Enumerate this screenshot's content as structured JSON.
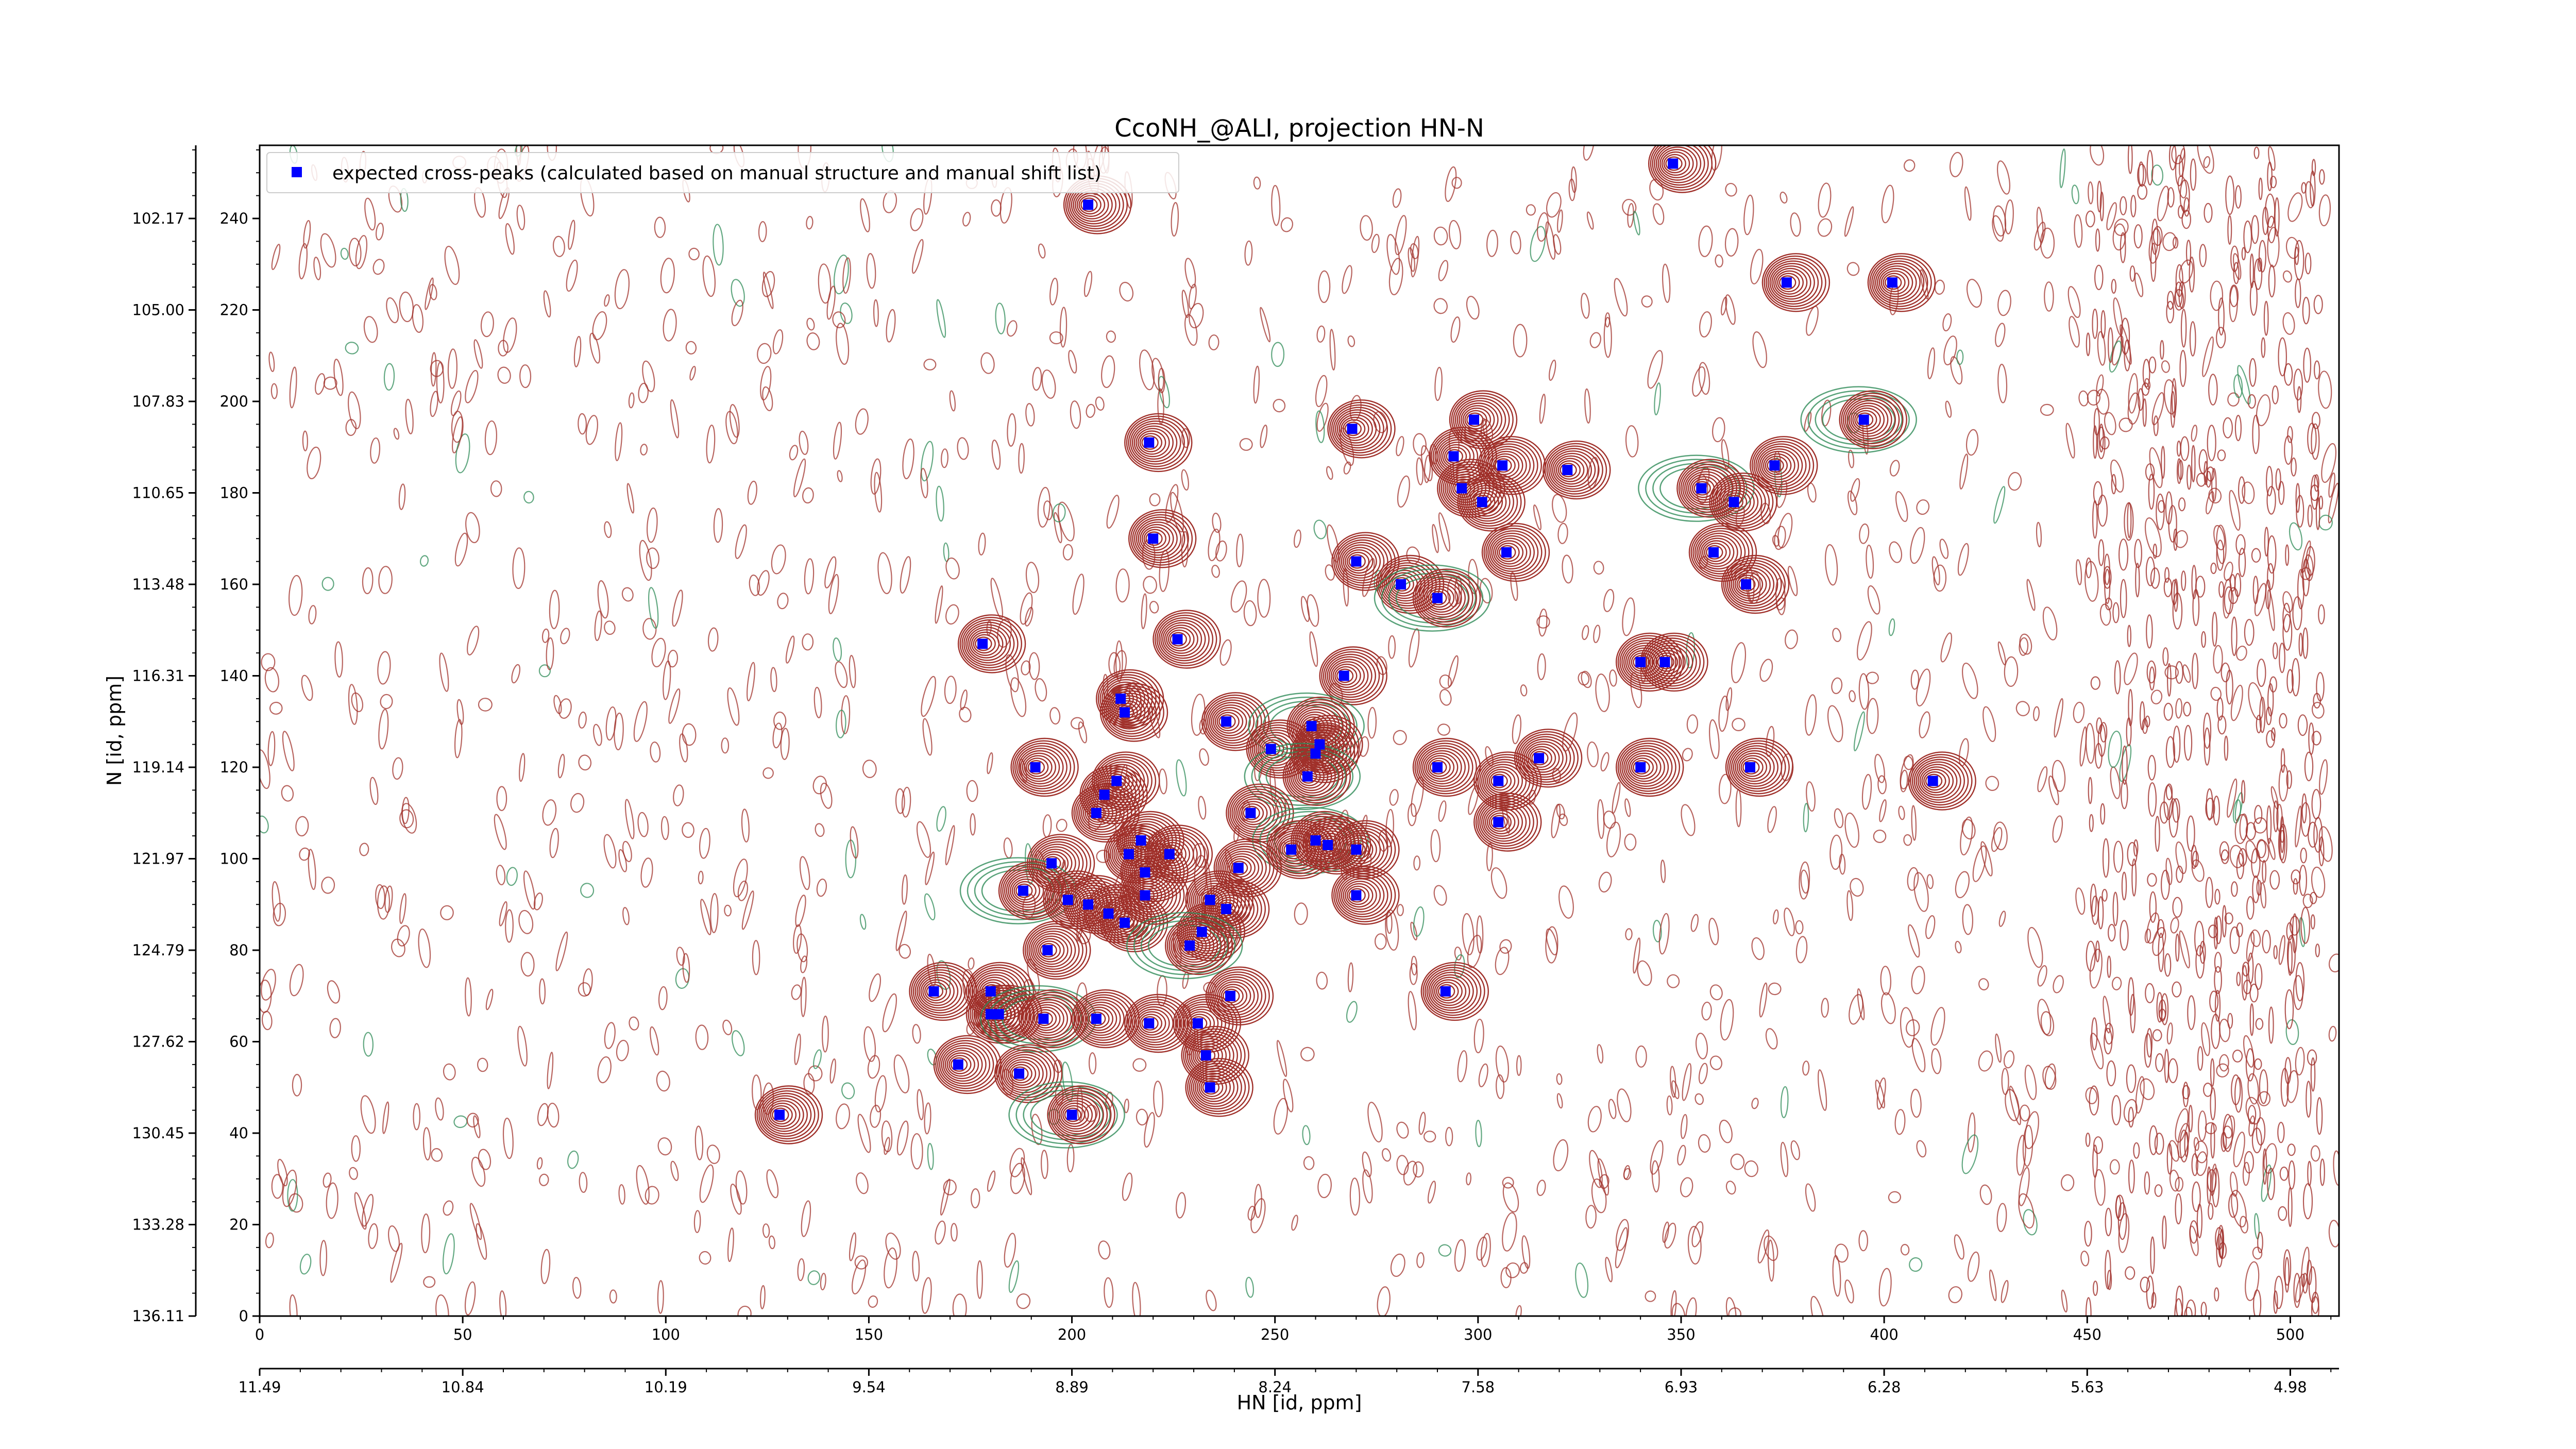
{
  "chart_data": {
    "type": "scatter",
    "title": "CcoNH_@ALI, projection HN-N",
    "xlabel": "HN [id, ppm]",
    "ylabel": "N [id, ppm]",
    "xlim": [
      0,
      512
    ],
    "ylim": [
      0,
      256
    ],
    "grid": false,
    "legend_position": "top-left",
    "x_ticks_bottom": [
      0,
      50,
      100,
      150,
      200,
      250,
      300,
      350,
      400,
      450,
      500
    ],
    "y_ticks_left": [
      0,
      20,
      40,
      60,
      80,
      100,
      120,
      140,
      160,
      180,
      200,
      220,
      240
    ],
    "hn_ppm_ticks": [
      "11.49",
      "10.84",
      "10.19",
      "9.54",
      "8.89",
      "8.24",
      "7.58",
      "6.93",
      "6.28",
      "5.63",
      "4.98"
    ],
    "n_ppm_ticks": [
      "136.11",
      "133.28",
      "130.45",
      "127.62",
      "124.79",
      "121.97",
      "119.14",
      "116.31",
      "113.48",
      "110.65",
      "107.83",
      "105.00",
      "102.17"
    ],
    "colors": {
      "marker": "#0000ff",
      "contour_positive": "#a0302a",
      "contour_negative": "#2e8b57",
      "axis": "#000000"
    },
    "series": [
      {
        "name": "expected cross-peaks (calculated based on manual structure and manual shift list)",
        "points": [
          [
            348,
            252
          ],
          [
            204,
            243
          ],
          [
            376,
            226
          ],
          [
            402,
            226
          ],
          [
            395,
            196
          ],
          [
            299,
            196
          ],
          [
            219,
            191
          ],
          [
            269,
            194
          ],
          [
            294,
            188
          ],
          [
            306,
            186
          ],
          [
            322,
            185
          ],
          [
            373,
            186
          ],
          [
            296,
            181
          ],
          [
            355,
            181
          ],
          [
            301,
            178
          ],
          [
            363,
            178
          ],
          [
            220,
            170
          ],
          [
            307,
            167
          ],
          [
            358,
            167
          ],
          [
            270,
            165
          ],
          [
            281,
            160
          ],
          [
            366,
            160
          ],
          [
            290,
            157
          ],
          [
            178,
            147
          ],
          [
            226,
            148
          ],
          [
            340,
            143
          ],
          [
            346,
            143
          ],
          [
            267,
            140
          ],
          [
            212,
            135
          ],
          [
            213,
            132
          ],
          [
            238,
            130
          ],
          [
            259,
            129
          ],
          [
            261,
            125
          ],
          [
            249,
            124
          ],
          [
            260,
            123
          ],
          [
            191,
            120
          ],
          [
            290,
            120
          ],
          [
            315,
            122
          ],
          [
            340,
            120
          ],
          [
            367,
            120
          ],
          [
            258,
            118
          ],
          [
            305,
            117
          ],
          [
            412,
            117
          ],
          [
            211,
            117
          ],
          [
            208,
            114
          ],
          [
            206,
            110
          ],
          [
            244,
            110
          ],
          [
            305,
            108
          ],
          [
            217,
            104
          ],
          [
            260,
            104
          ],
          [
            263,
            103
          ],
          [
            224,
            101
          ],
          [
            254,
            102
          ],
          [
            270,
            102
          ],
          [
            214,
            101
          ],
          [
            195,
            99
          ],
          [
            218,
            97
          ],
          [
            241,
            98
          ],
          [
            188,
            93
          ],
          [
            218,
            92
          ],
          [
            199,
            91
          ],
          [
            204,
            90
          ],
          [
            238,
            89
          ],
          [
            234,
            91
          ],
          [
            209,
            88
          ],
          [
            213,
            86
          ],
          [
            232,
            84
          ],
          [
            229,
            81
          ],
          [
            194,
            80
          ],
          [
            166,
            71
          ],
          [
            270,
            92
          ],
          [
            180,
            71
          ],
          [
            239,
            70
          ],
          [
            292,
            71
          ],
          [
            180,
            66
          ],
          [
            182,
            66
          ],
          [
            193,
            65
          ],
          [
            206,
            65
          ],
          [
            219,
            64
          ],
          [
            231,
            64
          ],
          [
            233,
            57
          ],
          [
            172,
            55
          ],
          [
            187,
            53
          ],
          [
            234,
            50
          ],
          [
            128,
            44
          ],
          [
            200,
            44
          ]
        ]
      }
    ]
  }
}
